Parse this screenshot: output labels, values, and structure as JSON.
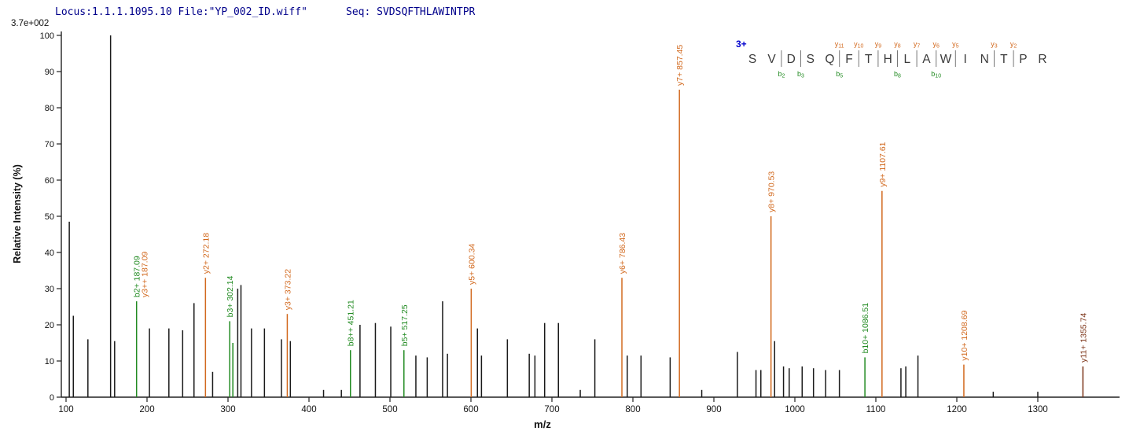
{
  "header": {
    "locus_line": "Locus:1.1.1.1095.10 File:\"YP_002_ID.wiff\"",
    "seq_line": "Seq: SVDSQFTHLAWINTPR",
    "scale_label": "3.7e+002"
  },
  "chart_data": {
    "type": "bar",
    "subtype": "ms2-spectrum-stick-plot",
    "title": "",
    "xlabel": "m/z",
    "ylabel": "Relative Intensity (%)",
    "xlim": [
      95,
      1400
    ],
    "ylim": [
      0,
      100
    ],
    "grid": false,
    "x_ticks": [
      100,
      200,
      300,
      400,
      500,
      600,
      700,
      800,
      900,
      1000,
      1100,
      1200,
      1300
    ],
    "y_ticks": [
      0,
      10,
      20,
      30,
      40,
      50,
      60,
      70,
      80,
      90,
      100
    ],
    "colors": {
      "y_ion": "#d2691e",
      "b_ion": "#228b22",
      "other_ion": "#7c3418",
      "unassigned": "#1a1a1a",
      "axis": "#222222",
      "charge": "#0000cd",
      "header_text": "#00008b",
      "residue_text": "#3b3b3b"
    },
    "peaks": [
      {
        "mz": 104,
        "i": 48.5,
        "s": "unassigned"
      },
      {
        "mz": 109,
        "i": 22.5,
        "s": "unassigned"
      },
      {
        "mz": 127,
        "i": 16,
        "s": "unassigned"
      },
      {
        "mz": 155,
        "i": 100,
        "s": "unassigned"
      },
      {
        "mz": 160,
        "i": 15.5,
        "s": "unassigned"
      },
      {
        "mz": 187.09,
        "i": 26.5,
        "s": "b_ion",
        "label": "b2+ 187.09",
        "label2": "y3++ 187.09",
        "label2_series": "y_ion"
      },
      {
        "mz": 203,
        "i": 19,
        "s": "unassigned"
      },
      {
        "mz": 227,
        "i": 19,
        "s": "unassigned"
      },
      {
        "mz": 244,
        "i": 18.5,
        "s": "unassigned"
      },
      {
        "mz": 258,
        "i": 26,
        "s": "unassigned"
      },
      {
        "mz": 272.18,
        "i": 33,
        "s": "y_ion",
        "label": "y2+ 272.18"
      },
      {
        "mz": 281,
        "i": 7,
        "s": "unassigned"
      },
      {
        "mz": 302.14,
        "i": 21,
        "s": "b_ion",
        "label": "b3+ 302.14"
      },
      {
        "mz": 306,
        "i": 15,
        "s": "b_ion"
      },
      {
        "mz": 312,
        "i": 30,
        "s": "unassigned"
      },
      {
        "mz": 316,
        "i": 31,
        "s": "unassigned"
      },
      {
        "mz": 329,
        "i": 19,
        "s": "unassigned"
      },
      {
        "mz": 345,
        "i": 19,
        "s": "unassigned"
      },
      {
        "mz": 366,
        "i": 16,
        "s": "unassigned"
      },
      {
        "mz": 373.22,
        "i": 23,
        "s": "y_ion",
        "label": "y3+ 373.22"
      },
      {
        "mz": 377,
        "i": 15.5,
        "s": "unassigned"
      },
      {
        "mz": 418,
        "i": 2,
        "s": "unassigned"
      },
      {
        "mz": 440,
        "i": 2,
        "s": "unassigned"
      },
      {
        "mz": 451.21,
        "i": 13,
        "s": "b_ion",
        "label": "b8++ 451.21"
      },
      {
        "mz": 463,
        "i": 20,
        "s": "unassigned"
      },
      {
        "mz": 482,
        "i": 20.5,
        "s": "unassigned"
      },
      {
        "mz": 501,
        "i": 19.5,
        "s": "unassigned"
      },
      {
        "mz": 517.25,
        "i": 13,
        "s": "b_ion",
        "label": "b5+ 517.25"
      },
      {
        "mz": 532,
        "i": 11.5,
        "s": "unassigned"
      },
      {
        "mz": 546,
        "i": 11,
        "s": "unassigned"
      },
      {
        "mz": 565,
        "i": 26.5,
        "s": "unassigned"
      },
      {
        "mz": 571,
        "i": 12,
        "s": "unassigned"
      },
      {
        "mz": 600.34,
        "i": 30,
        "s": "y_ion",
        "label": "y5+ 600.34"
      },
      {
        "mz": 608,
        "i": 19,
        "s": "unassigned"
      },
      {
        "mz": 613,
        "i": 11.5,
        "s": "unassigned"
      },
      {
        "mz": 645,
        "i": 16,
        "s": "unassigned"
      },
      {
        "mz": 672,
        "i": 12,
        "s": "unassigned"
      },
      {
        "mz": 679,
        "i": 11.5,
        "s": "unassigned"
      },
      {
        "mz": 691,
        "i": 20.5,
        "s": "unassigned"
      },
      {
        "mz": 708,
        "i": 20.5,
        "s": "unassigned"
      },
      {
        "mz": 735,
        "i": 2,
        "s": "unassigned"
      },
      {
        "mz": 753,
        "i": 16,
        "s": "unassigned"
      },
      {
        "mz": 786.43,
        "i": 33,
        "s": "y_ion",
        "label": "y6+ 786.43"
      },
      {
        "mz": 793,
        "i": 11.5,
        "s": "unassigned"
      },
      {
        "mz": 810,
        "i": 11.5,
        "s": "unassigned"
      },
      {
        "mz": 846,
        "i": 11,
        "s": "unassigned"
      },
      {
        "mz": 857.45,
        "i": 85,
        "s": "y_ion",
        "label": "y7+ 857.45"
      },
      {
        "mz": 885,
        "i": 2,
        "s": "unassigned"
      },
      {
        "mz": 929,
        "i": 12.5,
        "s": "unassigned"
      },
      {
        "mz": 952,
        "i": 7.5,
        "s": "unassigned"
      },
      {
        "mz": 958,
        "i": 7.5,
        "s": "unassigned"
      },
      {
        "mz": 970.53,
        "i": 50,
        "s": "y_ion",
        "label": "y8+ 970.53"
      },
      {
        "mz": 975,
        "i": 15.5,
        "s": "unassigned"
      },
      {
        "mz": 986,
        "i": 8.5,
        "s": "unassigned"
      },
      {
        "mz": 993,
        "i": 8,
        "s": "unassigned"
      },
      {
        "mz": 1009,
        "i": 8.5,
        "s": "unassigned"
      },
      {
        "mz": 1023,
        "i": 8,
        "s": "unassigned"
      },
      {
        "mz": 1038,
        "i": 7.5,
        "s": "unassigned"
      },
      {
        "mz": 1055,
        "i": 7.5,
        "s": "unassigned"
      },
      {
        "mz": 1086.51,
        "i": 11,
        "s": "b_ion",
        "label": "b10+ 1086.51"
      },
      {
        "mz": 1107.61,
        "i": 57,
        "s": "y_ion",
        "label": "y9+ 1107.61"
      },
      {
        "mz": 1131,
        "i": 8,
        "s": "unassigned"
      },
      {
        "mz": 1137,
        "i": 8.5,
        "s": "unassigned"
      },
      {
        "mz": 1152,
        "i": 11.5,
        "s": "unassigned"
      },
      {
        "mz": 1208.69,
        "i": 9,
        "s": "y_ion",
        "label": "y10+ 1208.69"
      },
      {
        "mz": 1245,
        "i": 1.5,
        "s": "unassigned"
      },
      {
        "mz": 1300,
        "i": 1.5,
        "s": "unassigned"
      },
      {
        "mz": 1355.74,
        "i": 8.5,
        "s": "other_ion",
        "label": "y11+ 1355.74"
      }
    ]
  },
  "sequence_annotation": {
    "charge": "3+",
    "residues": [
      "S",
      "V",
      "D",
      "S",
      "Q",
      "F",
      "T",
      "H",
      "L",
      "A",
      "W",
      "I",
      "N",
      "T",
      "P",
      "R"
    ],
    "gaps": [
      {
        "after": 2,
        "b": "b2"
      },
      {
        "after": 3,
        "b": "b3"
      },
      {
        "after": 5,
        "y": "y11",
        "b": "b5"
      },
      {
        "after": 6,
        "y": "y10"
      },
      {
        "after": 7,
        "y": "y9"
      },
      {
        "after": 8,
        "y": "y8",
        "b": "b8"
      },
      {
        "after": 9,
        "y": "y7"
      },
      {
        "after": 10,
        "y": "y6",
        "b": "b10"
      },
      {
        "after": 11,
        "y": "y5"
      },
      {
        "after": 13,
        "y": "y3"
      },
      {
        "after": 14,
        "y": "y2"
      }
    ]
  }
}
